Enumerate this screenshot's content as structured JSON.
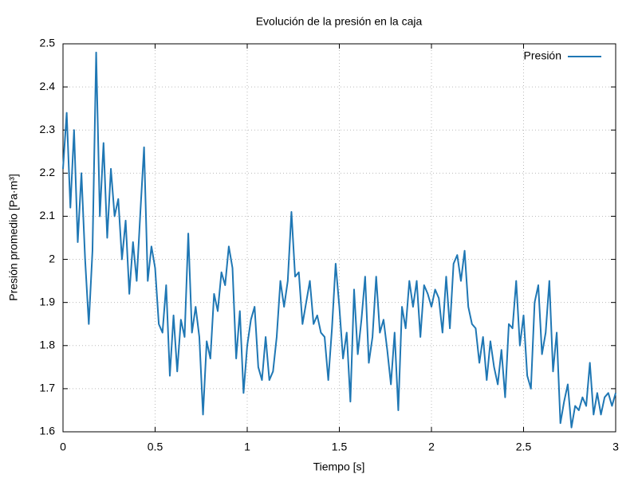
{
  "chart_data": {
    "type": "line",
    "title": "Evolución de la presión en la caja",
    "x_label": "Tiempo [s]",
    "y_label": "Presión promedio [Pa·m³]",
    "x": [
      0,
      0.02,
      0.04,
      0.06,
      0.08,
      0.1,
      0.12,
      0.14,
      0.16,
      0.18,
      0.2,
      0.22,
      0.24,
      0.26,
      0.28,
      0.3,
      0.32,
      0.34,
      0.36,
      0.38,
      0.4,
      0.42,
      0.44,
      0.46,
      0.48,
      0.5,
      0.52,
      0.54,
      0.56,
      0.58,
      0.6,
      0.62,
      0.64,
      0.66,
      0.68,
      0.7,
      0.72,
      0.74,
      0.76,
      0.78,
      0.8,
      0.82,
      0.84,
      0.86,
      0.88,
      0.9,
      0.92,
      0.94,
      0.96,
      0.98,
      1,
      1.02,
      1.04,
      1.06,
      1.08,
      1.1,
      1.12,
      1.14,
      1.16,
      1.18,
      1.2,
      1.22,
      1.24,
      1.26,
      1.28,
      1.3,
      1.32,
      1.34,
      1.36,
      1.38,
      1.4,
      1.42,
      1.44,
      1.46,
      1.48,
      1.5,
      1.52,
      1.54,
      1.56,
      1.58,
      1.6,
      1.62,
      1.64,
      1.66,
      1.68,
      1.7,
      1.72,
      1.74,
      1.76,
      1.78,
      1.8,
      1.82,
      1.84,
      1.86,
      1.88,
      1.9,
      1.92,
      1.94,
      1.96,
      1.98,
      2,
      2.02,
      2.04,
      2.06,
      2.08,
      2.1,
      2.12,
      2.14,
      2.16,
      2.18,
      2.2,
      2.22,
      2.24,
      2.26,
      2.28,
      2.3,
      2.32,
      2.34,
      2.36,
      2.38,
      2.4,
      2.42,
      2.44,
      2.46,
      2.48,
      2.5,
      2.52,
      2.54,
      2.56,
      2.58,
      2.6,
      2.62,
      2.64,
      2.66,
      2.68,
      2.7,
      2.72,
      2.74,
      2.76,
      2.78,
      2.8,
      2.82,
      2.84,
      2.86,
      2.88,
      2.9,
      2.92,
      2.94,
      2.96,
      2.98,
      3
    ],
    "series": [
      {
        "name": "Presión",
        "color": "#1f77b4",
        "values": [
          2.21,
          2.34,
          2.12,
          2.3,
          2.04,
          2.2,
          2.0,
          1.85,
          2.02,
          2.48,
          2.1,
          2.27,
          2.05,
          2.21,
          2.1,
          2.14,
          2.0,
          2.09,
          1.92,
          2.04,
          1.95,
          2.11,
          2.26,
          1.95,
          2.03,
          1.98,
          1.85,
          1.83,
          1.94,
          1.73,
          1.87,
          1.74,
          1.86,
          1.82,
          2.06,
          1.83,
          1.89,
          1.82,
          1.64,
          1.81,
          1.77,
          1.92,
          1.88,
          1.97,
          1.94,
          2.03,
          1.98,
          1.77,
          1.88,
          1.69,
          1.8,
          1.86,
          1.89,
          1.75,
          1.72,
          1.82,
          1.72,
          1.74,
          1.82,
          1.95,
          1.89,
          1.95,
          2.11,
          1.96,
          1.97,
          1.85,
          1.9,
          1.95,
          1.85,
          1.87,
          1.83,
          1.82,
          1.72,
          1.84,
          1.99,
          1.89,
          1.77,
          1.83,
          1.67,
          1.93,
          1.78,
          1.86,
          1.96,
          1.76,
          1.82,
          1.96,
          1.83,
          1.86,
          1.79,
          1.71,
          1.83,
          1.65,
          1.89,
          1.84,
          1.95,
          1.89,
          1.95,
          1.82,
          1.94,
          1.92,
          1.89,
          1.93,
          1.91,
          1.83,
          1.96,
          1.84,
          1.99,
          2.01,
          1.95,
          2.02,
          1.89,
          1.85,
          1.84,
          1.76,
          1.82,
          1.72,
          1.81,
          1.75,
          1.71,
          1.79,
          1.68,
          1.85,
          1.84,
          1.95,
          1.8,
          1.87,
          1.73,
          1.7,
          1.9,
          1.94,
          1.78,
          1.83,
          1.95,
          1.74,
          1.83,
          1.62,
          1.67,
          1.71,
          1.61,
          1.66,
          1.65,
          1.68,
          1.66,
          1.76,
          1.64,
          1.69,
          1.64,
          1.68,
          1.69,
          1.66,
          1.69
        ]
      }
    ],
    "xlim": [
      0,
      3
    ],
    "xticks": [
      0,
      0.5,
      1,
      1.5,
      2,
      2.5,
      3
    ],
    "ylim": [
      1.6,
      2.5
    ],
    "yticks": [
      1.6,
      1.7,
      1.8,
      1.9,
      2,
      2.1,
      2.2,
      2.3,
      2.4,
      2.5
    ],
    "grid": true,
    "legend": "top-right"
  }
}
